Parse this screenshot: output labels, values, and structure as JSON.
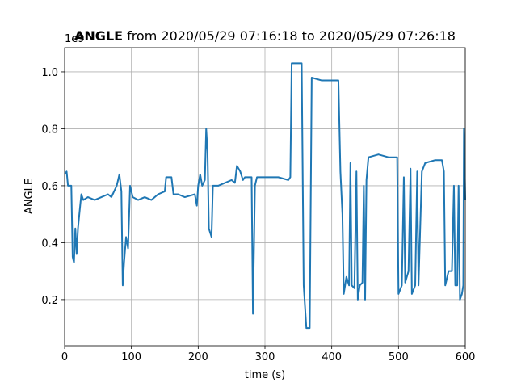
{
  "chart_data": {
    "type": "line",
    "title_bold": "ANGLE",
    "title": "from 2020/05/29 07:16:18 to 2020/05/29 07:26:18",
    "xlabel": "time (s)",
    "ylabel": "ANGLE",
    "y_offset_label": "1e9",
    "grid": true,
    "xlim": [
      0,
      600
    ],
    "xticks": [
      0,
      100,
      200,
      300,
      400,
      500,
      600
    ],
    "ylim": [
      0.038,
      1.085
    ],
    "yticks": [
      0.2,
      0.4,
      0.6,
      0.8,
      {
        "value": 1,
        "label": "1.0"
      }
    ],
    "series": [
      {
        "name": "ANGLE",
        "color": "#1f77b4",
        "x": [
          0,
          3,
          5,
          10,
          12,
          14,
          16,
          18,
          20,
          22,
          25,
          28,
          35,
          45,
          55,
          65,
          70,
          78,
          82,
          85,
          87,
          89,
          92,
          95,
          98,
          102,
          110,
          120,
          130,
          140,
          150,
          152,
          160,
          163,
          170,
          180,
          195,
          198,
          200,
          203,
          206,
          210,
          212,
          214,
          216,
          220,
          222,
          230,
          240,
          250,
          255,
          258,
          263,
          267,
          270,
          280,
          282,
          285,
          288,
          300,
          320,
          335,
          338,
          340,
          355,
          358,
          362,
          367,
          370,
          385,
          400,
          410,
          413,
          416,
          418,
          422,
          426,
          428,
          430,
          434,
          437,
          439,
          442,
          446,
          448,
          450,
          452,
          455,
          470,
          485,
          498,
          500,
          505,
          508,
          510,
          515,
          518,
          520,
          525,
          528,
          530,
          535,
          540,
          555,
          565,
          568,
          570,
          575,
          580,
          583,
          585,
          588,
          590,
          592,
          595,
          597,
          598,
          600
        ],
        "values": [
          0.64,
          0.65,
          0.6,
          0.6,
          0.35,
          0.33,
          0.45,
          0.36,
          0.45,
          0.5,
          0.57,
          0.55,
          0.56,
          0.55,
          0.56,
          0.57,
          0.56,
          0.6,
          0.64,
          0.58,
          0.25,
          0.33,
          0.42,
          0.38,
          0.6,
          0.56,
          0.55,
          0.56,
          0.55,
          0.57,
          0.58,
          0.63,
          0.63,
          0.57,
          0.57,
          0.56,
          0.57,
          0.53,
          0.6,
          0.64,
          0.6,
          0.62,
          0.8,
          0.72,
          0.45,
          0.42,
          0.6,
          0.6,
          0.61,
          0.62,
          0.61,
          0.67,
          0.65,
          0.62,
          0.63,
          0.63,
          0.15,
          0.6,
          0.63,
          0.63,
          0.63,
          0.62,
          0.63,
          1.03,
          1.03,
          0.25,
          0.1,
          0.1,
          0.98,
          0.97,
          0.97,
          0.97,
          0.65,
          0.5,
          0.22,
          0.28,
          0.25,
          0.68,
          0.25,
          0.24,
          0.65,
          0.2,
          0.25,
          0.26,
          0.6,
          0.2,
          0.62,
          0.7,
          0.71,
          0.7,
          0.7,
          0.22,
          0.25,
          0.63,
          0.26,
          0.3,
          0.66,
          0.22,
          0.25,
          0.65,
          0.25,
          0.65,
          0.68,
          0.69,
          0.69,
          0.65,
          0.25,
          0.3,
          0.3,
          0.6,
          0.25,
          0.25,
          0.6,
          0.2,
          0.22,
          0.25,
          0.8,
          0.55
        ]
      }
    ]
  }
}
